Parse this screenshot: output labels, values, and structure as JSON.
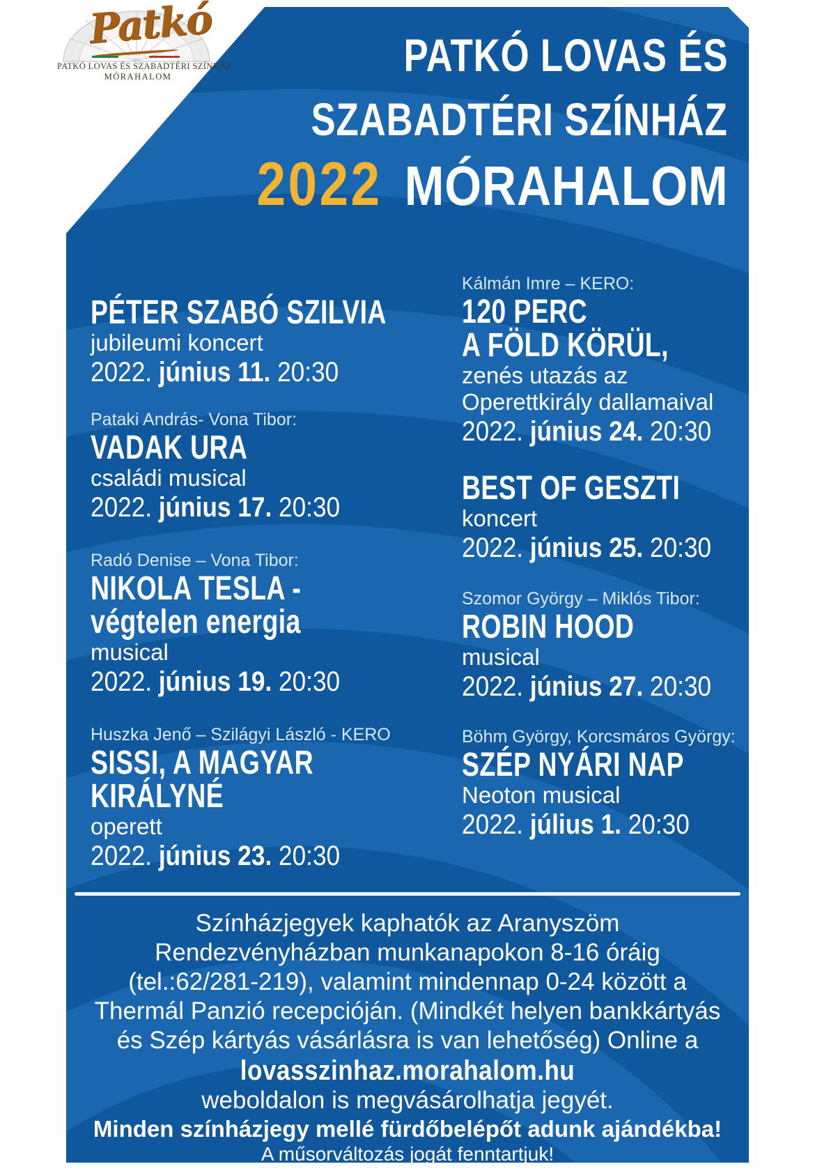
{
  "colors": {
    "poster_blue_light": "#1a67b0",
    "poster_blue_dark": "#0f589d",
    "year_yellow": "#f3b432"
  },
  "logo": {
    "script": "Patkó",
    "caption_line1": "PATKÓ LOVAS ÉS SZABADTÉRI SZÍNHÁZ",
    "caption_line2": "MÓRAHALOM"
  },
  "header": {
    "line1": "PATKÓ LOVAS ÉS",
    "line2": "SZABADTÉRI SZÍNHÁZ",
    "year": "2022",
    "line3": "MÓRAHALOM"
  },
  "events_left": [
    {
      "author": "",
      "title_lines": [
        "PÉTER SZABÓ SZILVIA"
      ],
      "genre_lines": [
        "jubileumi koncert"
      ],
      "date_prefix": "2022.",
      "date_bold": "június 11.",
      "date_time": "20:30"
    },
    {
      "author": "Pataki András- Vona Tibor:",
      "title_lines": [
        "VADAK URA"
      ],
      "genre_lines": [
        "családi musical"
      ],
      "date_prefix": "2022.",
      "date_bold": "június 17.",
      "date_time": "20:30"
    },
    {
      "author": "Radó Denise – Vona Tibor:",
      "title_lines": [
        "NIKOLA TESLA -",
        "végtelen energia"
      ],
      "genre_lines": [
        "musical"
      ],
      "date_prefix": "2022.",
      "date_bold": "június 19.",
      "date_time": "20:30"
    },
    {
      "author": "Huszka Jenő – Szilágyi László - KERO",
      "title_lines": [
        "SISSI, A MAGYAR",
        "KIRÁLYNÉ"
      ],
      "genre_lines": [
        "operett"
      ],
      "date_prefix": "2022.",
      "date_bold": "június 23.",
      "date_time": "20:30"
    }
  ],
  "events_right": [
    {
      "author": "Kálmán Imre – KERO:",
      "title_lines": [
        "120 PERC",
        "A FÖLD KÖRÜL,"
      ],
      "genre_lines": [
        "zenés utazás az",
        "Operettkirály dallamaival"
      ],
      "date_prefix": "2022.",
      "date_bold": "június 24.",
      "date_time": "20:30"
    },
    {
      "author": "",
      "title_lines": [
        "BEST OF GESZTI"
      ],
      "genre_lines": [
        "koncert"
      ],
      "date_prefix": "2022.",
      "date_bold": "június 25.",
      "date_time": "20:30"
    },
    {
      "author": "Szomor György – Miklós Tibor:",
      "title_lines": [
        "ROBIN HOOD"
      ],
      "genre_lines": [
        "musical"
      ],
      "date_prefix": "2022.",
      "date_bold": "június 27.",
      "date_time": "20:30"
    },
    {
      "author": "Böhm György, Korcsmáros György:",
      "title_lines": [
        "SZÉP NYÁRI NAP"
      ],
      "genre_lines": [
        "Neoton musical"
      ],
      "date_prefix": "2022.",
      "date_bold": "július 1.",
      "date_time": "20:30"
    }
  ],
  "footer": {
    "lines": [
      "Színházjegyek kaphatók az Aranyszöm",
      "Rendezvényházban munkanapokon 8-16 óráig",
      "(tel.:62/281-219), valamint  mindennap 0-24 között a",
      "Thermál Panzió recepcióján. (Mindkét helyen bankkártyás",
      "és Szép kártyás vásárlásra is van lehetőség) Online a"
    ],
    "website": "lovasszinhaz.morahalom.hu",
    "after_website": "weboldalon is megvásárolhatja jegyét.",
    "bonus": "Minden színházjegy mellé fürdőbelépőt adunk ajándékba!",
    "disclaimer": "A műsorváltozás jogát fenntartjuk!"
  }
}
